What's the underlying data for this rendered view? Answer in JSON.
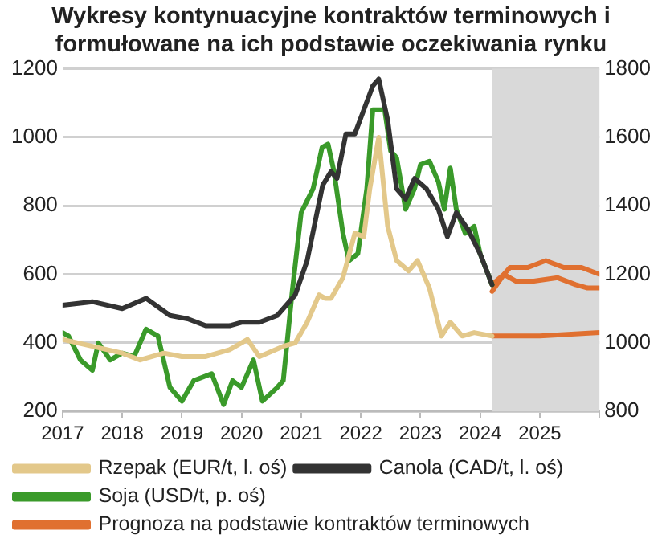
{
  "chart_data": {
    "type": "line",
    "title": "Wykresy kontynuacyjne kontraktów terminowych i formułowane na ich podstawie oczekiwania rynku",
    "xlim": [
      2017,
      2026
    ],
    "xticks": [
      2017,
      2018,
      2019,
      2020,
      2021,
      2022,
      2023,
      2024,
      2025,
      {
        "value": 2026,
        "label": null
      }
    ],
    "ylim": [
      200,
      1200
    ],
    "yticks": [
      200,
      400,
      600,
      800,
      1000,
      1200
    ],
    "y2lim": [
      800,
      1800
    ],
    "y2ticks": [
      800,
      1000,
      1200,
      1400,
      1600,
      1800
    ],
    "grid": "y",
    "legend": "bottom",
    "marker": "none",
    "line_style": "solid",
    "bands": [
      {
        "axis": "x",
        "from": 2024.2,
        "to": 2026,
        "color": "#d9d9d9"
      }
    ],
    "series": [
      {
        "name": "Rzepak (EUR/t, l. oś)",
        "color": "#e3c88a",
        "x": [
          2017,
          2017.5,
          2018,
          2018.3,
          2018.7,
          2019,
          2019.4,
          2019.8,
          2020.1,
          2020.3,
          2020.7,
          2020.9,
          2021.1,
          2021.3,
          2021.4,
          2021.5,
          2021.7,
          2021.9,
          2022.05,
          2022.15,
          2022.3,
          2022.45,
          2022.6,
          2022.8,
          2022.95,
          2023.15,
          2023.35,
          2023.5,
          2023.7,
          2023.9,
          2024.2
        ],
        "values": [
          410,
          390,
          370,
          350,
          370,
          360,
          360,
          380,
          410,
          360,
          390,
          400,
          460,
          540,
          530,
          530,
          590,
          720,
          710,
          850,
          1000,
          740,
          640,
          610,
          640,
          560,
          420,
          460,
          420,
          430,
          420
        ]
      },
      {
        "name": "Canola (CAD/t, l. oś)",
        "color": "#333333",
        "x": [
          2017,
          2017.5,
          2018,
          2018.4,
          2018.8,
          2019.1,
          2019.4,
          2019.8,
          2020,
          2020.3,
          2020.6,
          2020.9,
          2021.1,
          2021.36,
          2021.5,
          2021.6,
          2021.75,
          2021.9,
          2022.2,
          2022.3,
          2022.45,
          2022.6,
          2022.75,
          2022.9,
          2023.1,
          2023.3,
          2023.45,
          2023.6,
          2023.8,
          2024,
          2024.2
        ],
        "values": [
          510,
          520,
          500,
          530,
          480,
          470,
          450,
          450,
          460,
          460,
          480,
          540,
          640,
          860,
          900,
          880,
          1010,
          1010,
          1150,
          1170,
          1050,
          850,
          820,
          880,
          850,
          790,
          710,
          780,
          730,
          660,
          570
        ]
      },
      {
        "name": "Soja (USD/t, p. oś)",
        "color": "#3a9a2a",
        "axis": "y2",
        "x": [
          2017,
          2017.1,
          2017.3,
          2017.5,
          2017.6,
          2017.8,
          2018,
          2018.2,
          2018.4,
          2018.6,
          2018.8,
          2019,
          2019.2,
          2019.5,
          2019.7,
          2019.85,
          2020,
          2020.2,
          2020.35,
          2020.6,
          2020.7,
          2020.85,
          2021,
          2021.2,
          2021.35,
          2021.45,
          2021.55,
          2021.7,
          2021.8,
          2021.95,
          2022.1,
          2022.2,
          2022.4,
          2022.5,
          2022.6,
          2022.75,
          2022.9,
          2023,
          2023.15,
          2023.3,
          2023.4,
          2023.5,
          2023.6,
          2023.75,
          2023.9,
          2024,
          2024.2
        ],
        "values": [
          1030,
          1020,
          950,
          920,
          1000,
          950,
          970,
          960,
          1040,
          1020,
          870,
          830,
          890,
          910,
          820,
          890,
          870,
          950,
          830,
          870,
          890,
          1150,
          1380,
          1450,
          1570,
          1580,
          1500,
          1320,
          1240,
          1260,
          1450,
          1680,
          1680,
          1560,
          1540,
          1390,
          1450,
          1520,
          1530,
          1470,
          1390,
          1510,
          1390,
          1320,
          1340,
          1260,
          1170
        ]
      },
      {
        "name": "Prognoza na podstawie kontraktów terminowych",
        "color": "#e07030",
        "x": [
          2024.2,
          2024.4,
          2024.5,
          2024.8,
          2025.1,
          2025.4,
          2025.7,
          2026
        ],
        "values": [
          570,
          600,
          620,
          620,
          640,
          620,
          620,
          600
        ]
      },
      {
        "color": "#e07030",
        "x": [
          2024.2,
          2024.4,
          2024.6,
          2024.9,
          2025.3,
          2025.6,
          2025.8,
          2026
        ],
        "values": [
          550,
          600,
          580,
          580,
          590,
          570,
          560,
          560
        ]
      },
      {
        "color": "#e07030",
        "x": [
          2024.2,
          2025,
          2026
        ],
        "values": [
          420,
          420,
          430
        ]
      }
    ]
  }
}
